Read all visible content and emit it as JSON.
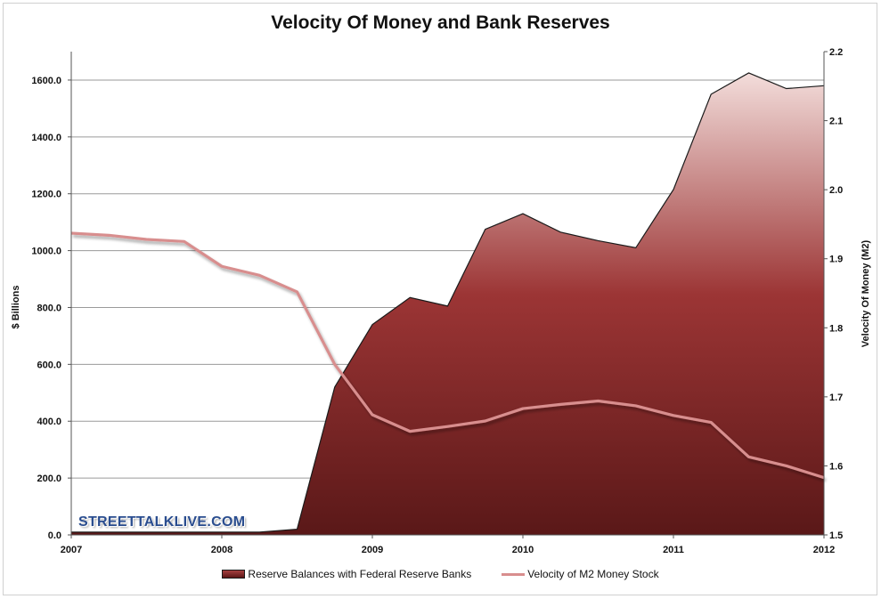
{
  "chart_data": {
    "type": "area",
    "title": "Velocity Of Money and Bank Reserves",
    "watermark": "STREETTALKLIVE.COM",
    "x_ticks": [
      "2007",
      "2008",
      "2009",
      "2010",
      "2011",
      "2012"
    ],
    "xlim": [
      2007.0,
      2012.0
    ],
    "y_left": {
      "label": "$ Billions",
      "lim": [
        0,
        1700
      ],
      "ticks": [
        "0.0",
        "200.0",
        "400.0",
        "600.0",
        "800.0",
        "1000.0",
        "1200.0",
        "1400.0",
        "1600.0"
      ]
    },
    "y_right": {
      "label": "Velocity Of Money (M2)",
      "lim": [
        1.5,
        2.2
      ],
      "ticks": [
        "1.5",
        "1.6",
        "1.7",
        "1.8",
        "1.9",
        "2.0",
        "2.1",
        "2.2"
      ]
    },
    "grid": true,
    "legend_position": "bottom",
    "series": [
      {
        "name": "Reserve Balances with Federal Reserve Banks",
        "type": "area",
        "axis": "left",
        "color_top": "#f3dddb",
        "color_mid": "#9c3535",
        "color_bottom": "#5a1818",
        "x": [
          2007.0,
          2007.25,
          2007.5,
          2007.75,
          2008.0,
          2008.25,
          2008.5,
          2008.75,
          2009.0,
          2009.25,
          2009.5,
          2009.75,
          2010.0,
          2010.25,
          2010.5,
          2010.75,
          2011.0,
          2011.25,
          2011.5,
          2011.75,
          2012.0
        ],
        "values": [
          10,
          10,
          10,
          10,
          10,
          10,
          20,
          520,
          740,
          835,
          805,
          1075,
          1130,
          1065,
          1035,
          1010,
          1215,
          1550,
          1625,
          1570,
          1580
        ]
      },
      {
        "name": "Velocity of M2 Money Stock",
        "type": "line",
        "axis": "right",
        "color": "#d88e8e",
        "x": [
          2007.0,
          2007.25,
          2007.5,
          2007.75,
          2008.0,
          2008.25,
          2008.5,
          2008.75,
          2009.0,
          2009.25,
          2009.5,
          2009.75,
          2010.0,
          2010.25,
          2010.5,
          2010.75,
          2011.0,
          2011.25,
          2011.5,
          2011.75,
          2012.0
        ],
        "values": [
          1.937,
          1.934,
          1.928,
          1.925,
          1.889,
          1.876,
          1.852,
          1.747,
          1.674,
          1.65,
          1.657,
          1.665,
          1.683,
          1.689,
          1.694,
          1.687,
          1.673,
          1.663,
          1.613,
          1.6,
          1.583
        ]
      }
    ]
  }
}
